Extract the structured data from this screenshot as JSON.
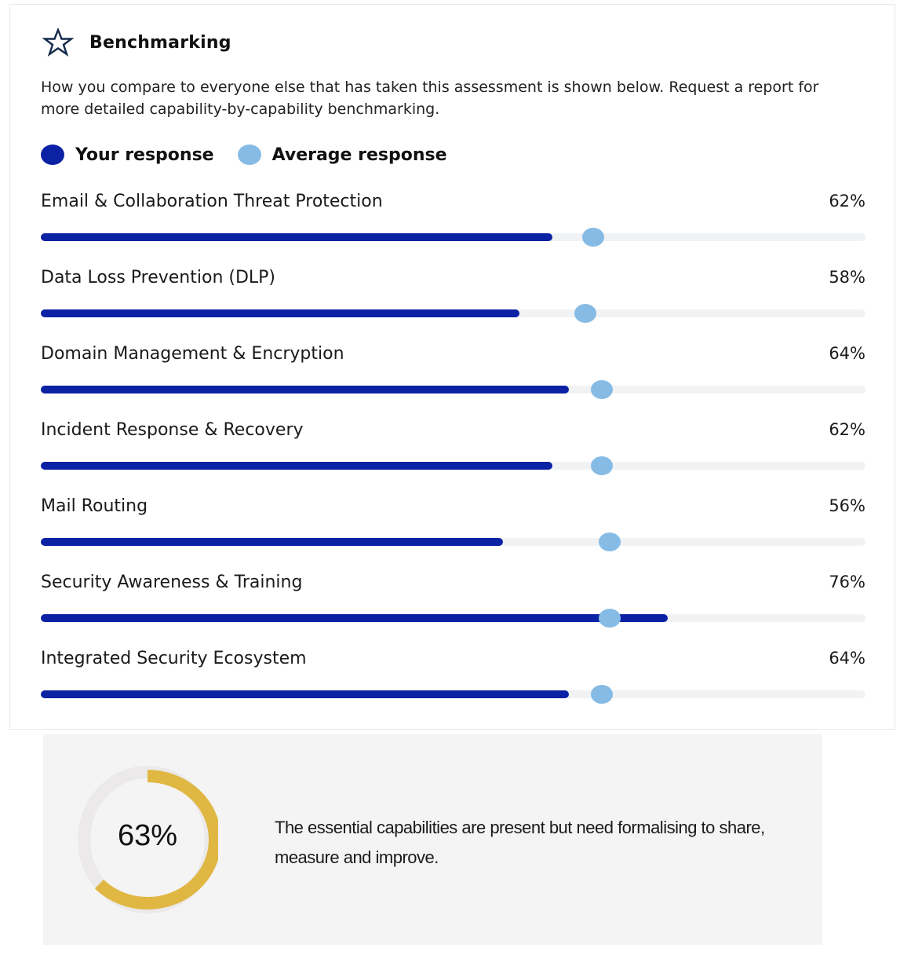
{
  "header": {
    "icon": "star-outline-icon",
    "title": "Benchmarking"
  },
  "description": "How you compare to everyone else that has taken this assessment is shown below. Request a report for more detailed capability-by-capability benchmarking.",
  "legend": {
    "your_response": {
      "label": "Your response",
      "color": "#0a22a3"
    },
    "average_response": {
      "label": "Average response",
      "color": "#86bbe5"
    }
  },
  "colors": {
    "track": "#f1f2f4",
    "donut_fill": "#e0b742",
    "donut_track": "#ece9ea",
    "summary_bg": "#f4f4f4"
  },
  "chart_data": {
    "type": "bar",
    "title": "Benchmarking",
    "orientation": "horizontal",
    "xlim": [
      0,
      100
    ],
    "unit": "%",
    "categories": [
      "Email & Collaboration Threat Protection",
      "Data Loss Prevention (DLP)",
      "Domain Management & Encryption",
      "Incident Response & Recovery",
      "Mail Routing",
      "Security Awareness & Training",
      "Integrated Security Ecosystem"
    ],
    "series": [
      {
        "name": "Your response",
        "values": [
          62,
          58,
          64,
          62,
          56,
          76,
          64
        ]
      },
      {
        "name": "Average response",
        "values": [
          67,
          66,
          68,
          68,
          69,
          69,
          68
        ]
      }
    ],
    "legend_position": "top-left"
  },
  "rows": [
    {
      "label": "Email & Collaboration Threat Protection",
      "value_text": "62%",
      "value": 62,
      "avg": 67
    },
    {
      "label": "Data Loss Prevention (DLP)",
      "value_text": "58%",
      "value": 58,
      "avg": 66
    },
    {
      "label": "Domain Management & Encryption",
      "value_text": "64%",
      "value": 64,
      "avg": 68
    },
    {
      "label": "Incident Response & Recovery",
      "value_text": "62%",
      "value": 62,
      "avg": 68
    },
    {
      "label": "Mail Routing",
      "value_text": "56%",
      "value": 56,
      "avg": 69
    },
    {
      "label": "Security Awareness & Training",
      "value_text": "76%",
      "value": 76,
      "avg": 69
    },
    {
      "label": "Integrated Security Ecosystem",
      "value_text": "64%",
      "value": 64,
      "avg": 68
    }
  ],
  "summary": {
    "score": 63,
    "score_text": "63%",
    "text": "The essential capabilities are present but need formalising to share, measure and improve."
  }
}
